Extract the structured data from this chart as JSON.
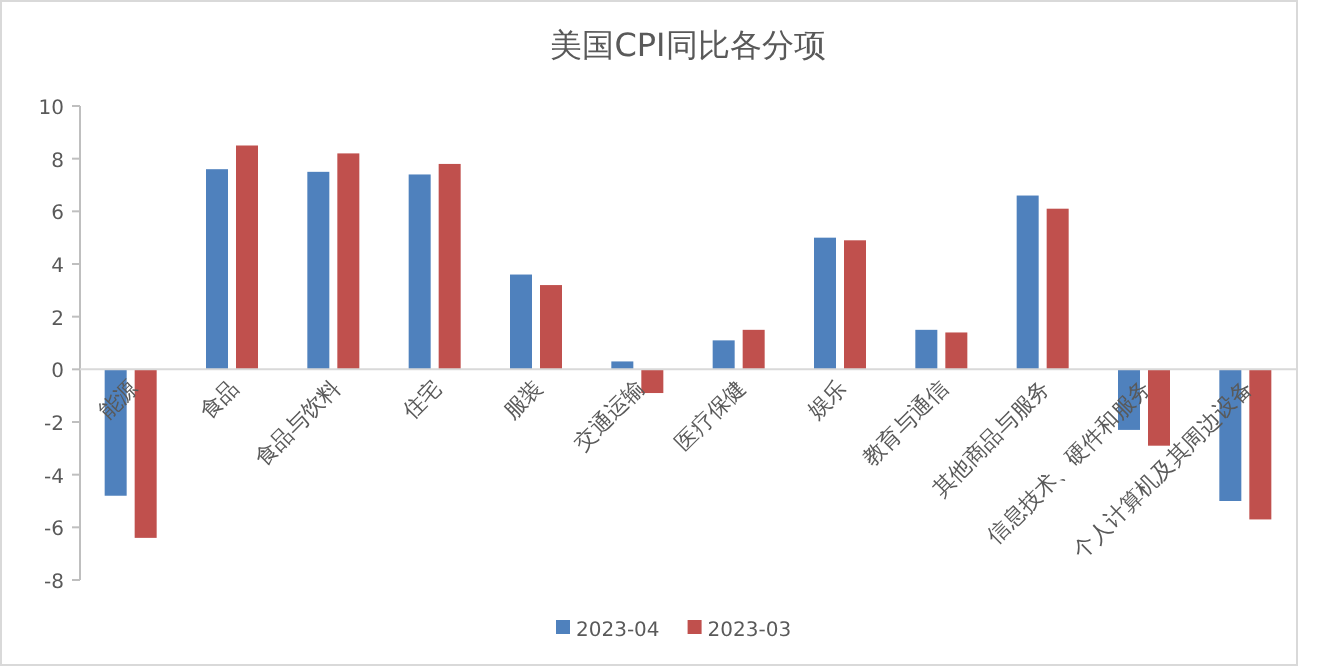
{
  "chart_data": {
    "type": "bar",
    "title": "美国CPI同比各分项",
    "categories": [
      "能源",
      "食品",
      "食品与饮料",
      "住宅",
      "服装",
      "交通运输",
      "医疗保健",
      "娱乐",
      "教育与通信",
      "其他商品与服务",
      "信息技术、硬件和服务",
      "个人计算机及其周边设备"
    ],
    "series": [
      {
        "name": "2023-04",
        "color": "#4f81bd",
        "values": [
          -4.8,
          7.6,
          7.5,
          7.4,
          3.6,
          0.3,
          1.1,
          5.0,
          1.5,
          6.6,
          -2.3,
          -5.0
        ]
      },
      {
        "name": "2023-03",
        "color": "#c0504d",
        "values": [
          -6.4,
          8.5,
          8.2,
          7.8,
          3.2,
          -0.9,
          1.5,
          4.9,
          1.4,
          6.1,
          -2.9,
          -5.7
        ]
      }
    ],
    "ylim": [
      -8,
      10
    ],
    "yticks": [
      -8,
      -6,
      -4,
      -2,
      0,
      2,
      4,
      6,
      8,
      10
    ],
    "grid": false,
    "legend": "bottom"
  }
}
